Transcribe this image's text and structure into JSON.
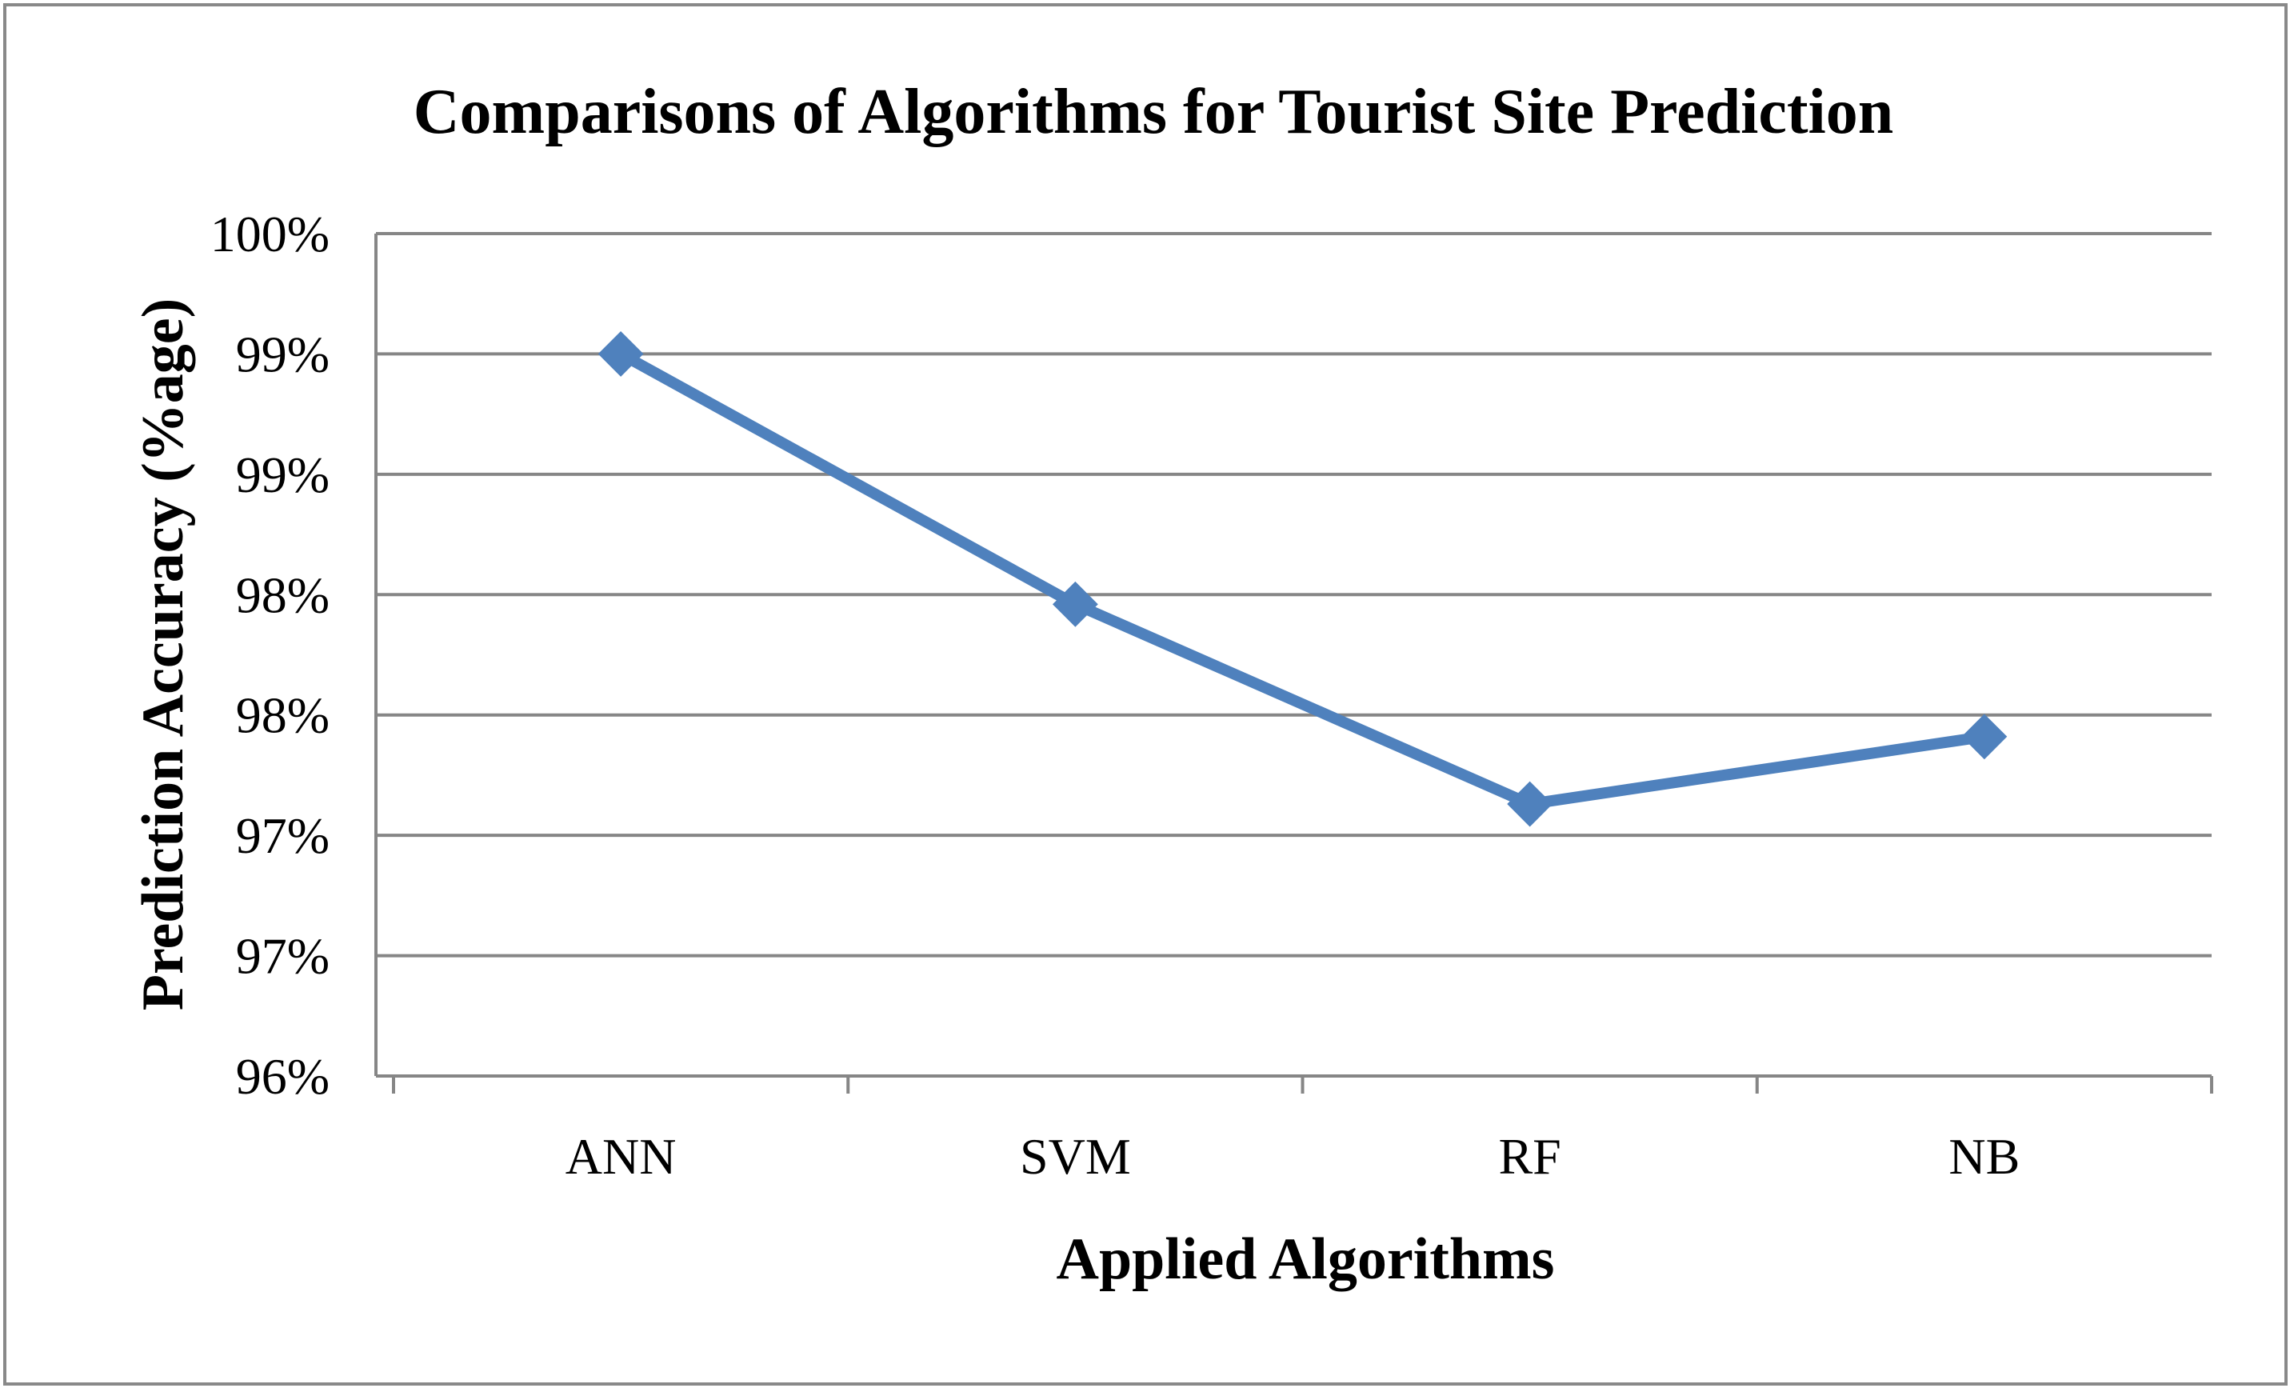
{
  "chart_data": {
    "type": "line",
    "title": "Comparisons of Algorithms for Tourist Site Prediction",
    "xlabel": "Applied Algorithms",
    "ylabel": "Prediction Accuracy (%age)",
    "categories": [
      "ANN",
      "SVM",
      "RF",
      "NB"
    ],
    "series": [
      {
        "values": [
          99.0,
          97.96,
          97.13,
          97.41
        ],
        "color": "#4F81BD",
        "marker": "diamond"
      }
    ],
    "ylim": [
      96.0,
      99.5
    ],
    "y_tick_values": [
      96.0,
      96.5,
      97.0,
      97.5,
      98.0,
      98.5,
      99.0,
      99.5
    ],
    "y_tick_labels": [
      "96%",
      "97%",
      "97%",
      "98%",
      "98%",
      "99%",
      "99%",
      "100%"
    ],
    "grid": true,
    "legend": "none"
  }
}
